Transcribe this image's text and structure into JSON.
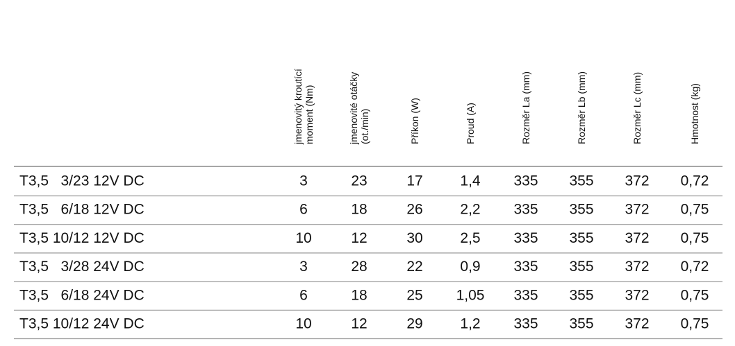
{
  "table": {
    "headers": [
      [
        "jmenovitý kroutící",
        "moment (Nm)"
      ],
      [
        "jmenovité otáčky",
        "(ot./min)"
      ],
      [
        "Příkon (W)"
      ],
      [
        "Proud (A)"
      ],
      [
        "Rozměr La (mm)"
      ],
      [
        "Rozměr Lb (mm)"
      ],
      [
        "Rozměr Lc (mm)"
      ],
      [
        "Hmotnost (kg)"
      ]
    ],
    "rows": [
      [
        "T3,5   3/23 12V DC",
        "3",
        "23",
        "17",
        "1,4",
        "335",
        "355",
        "372",
        "0,72"
      ],
      [
        "T3,5   6/18 12V DC",
        "6",
        "18",
        "26",
        "2,2",
        "335",
        "355",
        "372",
        "0,75"
      ],
      [
        "T3,5 10/12 12V DC",
        "10",
        "12",
        "30",
        "2,5",
        "335",
        "355",
        "372",
        "0,75"
      ],
      [
        "T3,5   3/28 24V DC",
        "3",
        "28",
        "22",
        "0,9",
        "335",
        "355",
        "372",
        "0,72"
      ],
      [
        "T3,5   6/18 24V DC",
        "6",
        "18",
        "25",
        "1,05",
        "335",
        "355",
        "372",
        "0,75"
      ],
      [
        "T3,5 10/12 24V DC",
        "10",
        "12",
        "29",
        "1,2",
        "335",
        "355",
        "372",
        "0,75"
      ]
    ]
  }
}
